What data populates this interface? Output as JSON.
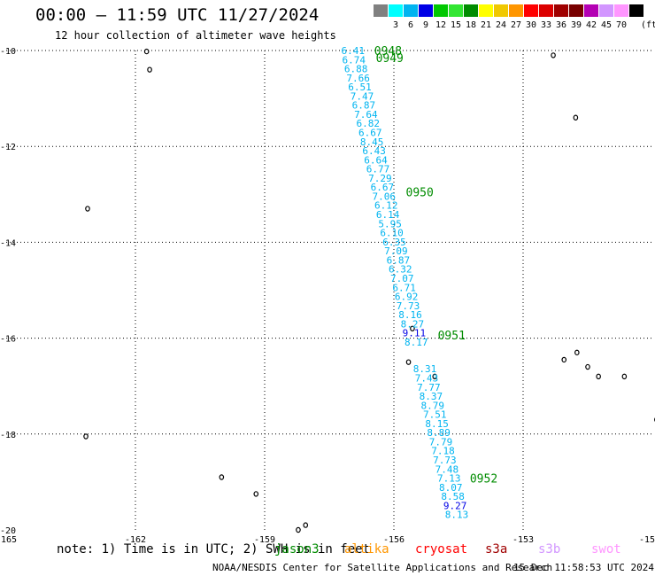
{
  "title": "00:00 – 11:59 UTC 11/27/2024",
  "subtitle": "12 hour collection of altimeter wave heights",
  "colorbar": {
    "unit": "(ft)",
    "bins": [
      {
        "label": "",
        "color": "#808080"
      },
      {
        "label": "3",
        "color": "#00ffff"
      },
      {
        "label": "6",
        "color": "#00b4f0"
      },
      {
        "label": "9",
        "color": "#0000e6"
      },
      {
        "label": "12",
        "color": "#00c800"
      },
      {
        "label": "15",
        "color": "#32e632"
      },
      {
        "label": "18",
        "color": "#008c00"
      },
      {
        "label": "21",
        "color": "#ffff00"
      },
      {
        "label": "24",
        "color": "#f0c800"
      },
      {
        "label": "27",
        "color": "#ff9600"
      },
      {
        "label": "30",
        "color": "#ff0000"
      },
      {
        "label": "33",
        "color": "#dc0000"
      },
      {
        "label": "36",
        "color": "#a00000"
      },
      {
        "label": "39",
        "color": "#780000"
      },
      {
        "label": "42",
        "color": "#b400b4"
      },
      {
        "label": "45",
        "color": "#d296ff"
      },
      {
        "label": "70",
        "color": "#ff96ff"
      },
      {
        "label": "",
        "color": "#000000"
      }
    ]
  },
  "axes": {
    "lon_ticks": [
      "-165",
      "-162",
      "-159",
      "-156",
      "-153",
      "-15"
    ],
    "lat_ticks": [
      "-10",
      "-12",
      "-14",
      "-16",
      "-18",
      "-20"
    ]
  },
  "times": [
    {
      "label": "0948",
      "lat": -10.0
    },
    {
      "label": "0949",
      "lat": -10.15
    },
    {
      "label": "0950",
      "lat": -12.95
    },
    {
      "label": "0951",
      "lat": -15.93
    },
    {
      "label": "0952",
      "lat": -18.92
    }
  ],
  "track": [
    {
      "v": "6.41",
      "lon": -156.95,
      "lat": -10.0,
      "c": "#00b4f0"
    },
    {
      "v": "6.74",
      "lon": -156.93,
      "lat": -10.19,
      "c": "#00b4f0"
    },
    {
      "v": "6.88",
      "lon": -156.88,
      "lat": -10.38,
      "c": "#00b4f0"
    },
    {
      "v": "7.66",
      "lon": -156.83,
      "lat": -10.57,
      "c": "#00b4f0"
    },
    {
      "v": "6.51",
      "lon": -156.79,
      "lat": -10.76,
      "c": "#00b4f0"
    },
    {
      "v": "7.47",
      "lon": -156.74,
      "lat": -10.95,
      "c": "#00b4f0"
    },
    {
      "v": "6.87",
      "lon": -156.7,
      "lat": -11.14,
      "c": "#00b4f0"
    },
    {
      "v": "7.64",
      "lon": -156.65,
      "lat": -11.33,
      "c": "#00b4f0"
    },
    {
      "v": "6.82",
      "lon": -156.6,
      "lat": -11.52,
      "c": "#00b4f0"
    },
    {
      "v": "6.67",
      "lon": -156.55,
      "lat": -11.71,
      "c": "#00b4f0"
    },
    {
      "v": "8.45",
      "lon": -156.51,
      "lat": -11.9,
      "c": "#00b4f0"
    },
    {
      "v": "6.43",
      "lon": -156.46,
      "lat": -12.09,
      "c": "#00b4f0"
    },
    {
      "v": "6.64",
      "lon": -156.42,
      "lat": -12.28,
      "c": "#00b4f0"
    },
    {
      "v": "6.77",
      "lon": -156.37,
      "lat": -12.47,
      "c": "#00b4f0"
    },
    {
      "v": "7.29",
      "lon": -156.32,
      "lat": -12.66,
      "c": "#00b4f0"
    },
    {
      "v": "6.67",
      "lon": -156.27,
      "lat": -12.85,
      "c": "#00b4f0"
    },
    {
      "v": "7.06",
      "lon": -156.23,
      "lat": -13.04,
      "c": "#00b4f0"
    },
    {
      "v": "6.12",
      "lon": -156.18,
      "lat": -13.23,
      "c": "#00b4f0"
    },
    {
      "v": "6.14",
      "lon": -156.14,
      "lat": -13.42,
      "c": "#00b4f0"
    },
    {
      "v": "5.95",
      "lon": -156.09,
      "lat": -13.61,
      "c": "#00b4f0"
    },
    {
      "v": "6.10",
      "lon": -156.05,
      "lat": -13.8,
      "c": "#00b4f0"
    },
    {
      "v": "6.35",
      "lon": -155.99,
      "lat": -13.99,
      "c": "#00b4f0"
    },
    {
      "v": "7.09",
      "lon": -155.95,
      "lat": -14.18,
      "c": "#00b4f0"
    },
    {
      "v": "6.87",
      "lon": -155.9,
      "lat": -14.37,
      "c": "#00b4f0"
    },
    {
      "v": "6.32",
      "lon": -155.85,
      "lat": -14.56,
      "c": "#00b4f0"
    },
    {
      "v": "7.07",
      "lon": -155.81,
      "lat": -14.75,
      "c": "#00b4f0"
    },
    {
      "v": "6.71",
      "lon": -155.76,
      "lat": -14.94,
      "c": "#00b4f0"
    },
    {
      "v": "6.92",
      "lon": -155.71,
      "lat": -15.13,
      "c": "#00b4f0"
    },
    {
      "v": "7.73",
      "lon": -155.67,
      "lat": -15.32,
      "c": "#00b4f0"
    },
    {
      "v": "8.16",
      "lon": -155.62,
      "lat": -15.51,
      "c": "#00b4f0"
    },
    {
      "v": "8.27",
      "lon": -155.57,
      "lat": -15.7,
      "c": "#00b4f0"
    },
    {
      "v": "9.11",
      "lon": -155.53,
      "lat": -15.89,
      "c": "#0000e6"
    },
    {
      "v": "8.17",
      "lon": -155.48,
      "lat": -16.08,
      "c": "#00b4f0"
    },
    {
      "v": "8.31",
      "lon": -155.28,
      "lat": -16.64,
      "c": "#00b4f0"
    },
    {
      "v": "7.43",
      "lon": -155.24,
      "lat": -16.83,
      "c": "#00b4f0"
    },
    {
      "v": "7.77",
      "lon": -155.19,
      "lat": -17.02,
      "c": "#00b4f0"
    },
    {
      "v": "8.37",
      "lon": -155.14,
      "lat": -17.21,
      "c": "#00b4f0"
    },
    {
      "v": "8.79",
      "lon": -155.1,
      "lat": -17.4,
      "c": "#00b4f0"
    },
    {
      "v": "7.51",
      "lon": -155.05,
      "lat": -17.59,
      "c": "#00b4f0"
    },
    {
      "v": "8.15",
      "lon": -155.0,
      "lat": -17.78,
      "c": "#00b4f0"
    },
    {
      "v": "8.89",
      "lon": -154.96,
      "lat": -17.97,
      "c": "#00b4f0"
    },
    {
      "v": "7.79",
      "lon": -154.91,
      "lat": -18.16,
      "c": "#00b4f0"
    },
    {
      "v": "7.18",
      "lon": -154.86,
      "lat": -18.35,
      "c": "#00b4f0"
    },
    {
      "v": "7.73",
      "lon": -154.82,
      "lat": -18.54,
      "c": "#00b4f0"
    },
    {
      "v": "7.48",
      "lon": -154.77,
      "lat": -18.73,
      "c": "#00b4f0"
    },
    {
      "v": "7.13",
      "lon": -154.72,
      "lat": -18.92,
      "c": "#00b4f0"
    },
    {
      "v": "8.07",
      "lon": -154.68,
      "lat": -19.11,
      "c": "#00b4f0"
    },
    {
      "v": "8.58",
      "lon": -154.63,
      "lat": -19.3,
      "c": "#00b4f0"
    },
    {
      "v": "9.27",
      "lon": -154.58,
      "lat": -19.49,
      "c": "#0000e6"
    },
    {
      "v": "8.13",
      "lon": -154.54,
      "lat": -19.68,
      "c": "#00b4f0"
    }
  ],
  "islands": [
    {
      "lon": -161.74,
      "lat": -10.02
    },
    {
      "lon": -161.67,
      "lat": -10.4
    },
    {
      "lon": -163.11,
      "lat": -13.3
    },
    {
      "lon": -152.3,
      "lat": -10.1
    },
    {
      "lon": -151.78,
      "lat": -11.4
    },
    {
      "lon": -155.57,
      "lat": -15.8
    },
    {
      "lon": -155.66,
      "lat": -16.5
    },
    {
      "lon": -155.05,
      "lat": -16.8
    },
    {
      "lon": -151.75,
      "lat": -16.3
    },
    {
      "lon": -152.05,
      "lat": -16.45
    },
    {
      "lon": -151.5,
      "lat": -16.6
    },
    {
      "lon": -151.25,
      "lat": -16.8
    },
    {
      "lon": -150.65,
      "lat": -16.8
    },
    {
      "lon": -149.9,
      "lat": -17.7
    },
    {
      "lon": -163.15,
      "lat": -18.05
    },
    {
      "lon": -160.0,
      "lat": -18.9
    },
    {
      "lon": -159.2,
      "lat": -19.25
    },
    {
      "lon": -158.05,
      "lat": -19.9
    },
    {
      "lon": -158.22,
      "lat": -20.0
    }
  ],
  "footer": {
    "note": "note: 1) Time is in UTC; 2) SWH is in feet",
    "missions": [
      {
        "name": "jason3",
        "color": "#008c00"
      },
      {
        "name": "altika",
        "color": "#ff9600"
      },
      {
        "name": "cryosat",
        "color": "#ff0000"
      },
      {
        "name": "s3a",
        "color": "#a00000"
      },
      {
        "name": "s3b",
        "color": "#d296ff"
      },
      {
        "name": "swot",
        "color": "#ff96ff"
      }
    ],
    "credit": "NOAA/NESDIS Center for Satellite Applications and Research",
    "timestamp": "15 Dec 11:58:53 UTC 2024"
  }
}
